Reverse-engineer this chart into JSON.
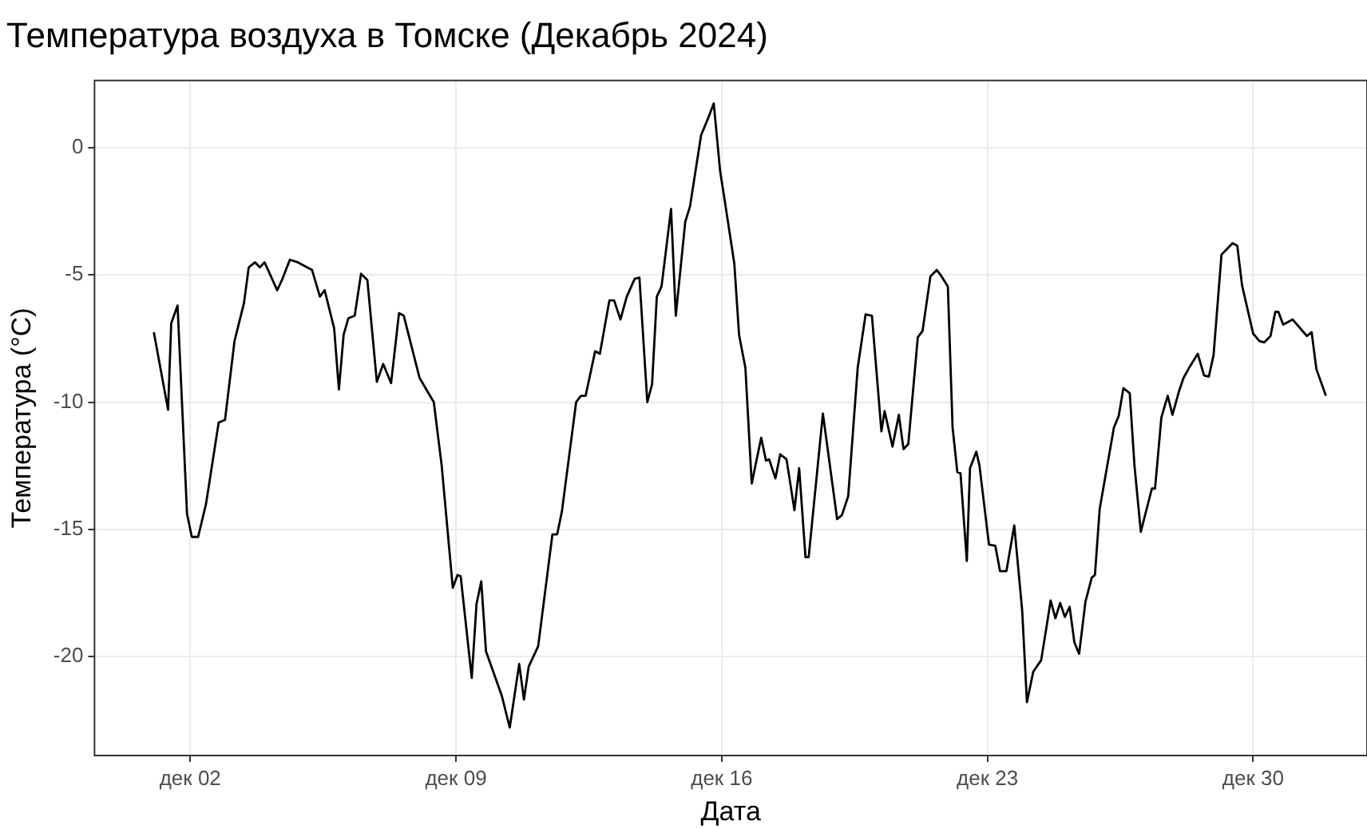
{
  "chart_data": {
    "type": "line",
    "title": "Температура воздуха в Томске (Декабрь 2024)",
    "xlabel": "Дата",
    "ylabel": "Температура (°C)",
    "x": [
      "2024-12-01T01:00",
      "2024-12-01T10:00",
      "2024-12-01T12:00",
      "2024-12-01T16:00",
      "2024-12-01T22:00",
      "2024-12-02T01:00",
      "2024-12-02T05:00",
      "2024-12-02T10:00",
      "2024-12-02T18:00",
      "2024-12-02T22:00",
      "2024-12-03T04:00",
      "2024-12-03T10:00",
      "2024-12-03T13:00",
      "2024-12-03T17:00",
      "2024-12-03T20:00",
      "2024-12-03T23:00",
      "2024-12-04T07:00",
      "2024-12-04T10:00",
      "2024-12-04T15:00",
      "2024-12-04T20:00",
      "2024-12-05T05:00",
      "2024-12-05T10:00",
      "2024-12-05T13:00",
      "2024-12-05T19:00",
      "2024-12-05T22:00",
      "2024-12-06T01:00",
      "2024-12-06T04:00",
      "2024-12-06T08:00",
      "2024-12-06T12:00",
      "2024-12-06T16:00",
      "2024-12-06T22:00",
      "2024-12-07T02:00",
      "2024-12-07T07:00",
      "2024-12-07T12:00",
      "2024-12-07T15:00",
      "2024-12-08T01:00",
      "2024-12-08T10:00",
      "2024-12-08T15:00",
      "2024-12-08T22:00",
      "2024-12-09T01:00",
      "2024-12-09T03:00",
      "2024-12-09T10:00",
      "2024-12-09T13:00",
      "2024-12-09T16:00",
      "2024-12-09T19:00",
      "2024-12-10T05:00",
      "2024-12-10T10:00",
      "2024-12-10T16:00",
      "2024-12-10T19:00",
      "2024-12-10T22:00",
      "2024-12-11T04:00",
      "2024-12-11T13:00",
      "2024-12-11T16:00",
      "2024-12-11T19:00",
      "2024-12-12T04:00",
      "2024-12-12T07:00",
      "2024-12-12T10:00",
      "2024-12-12T16:00",
      "2024-12-12T19:00",
      "2024-12-13T01:00",
      "2024-12-13T04:00",
      "2024-12-13T08:00",
      "2024-12-13T12:00",
      "2024-12-13T17:00",
      "2024-12-13T20:00",
      "2024-12-14T01:00",
      "2024-12-14T04:00",
      "2024-12-14T07:00",
      "2024-12-14T10:00",
      "2024-12-14T16:00",
      "2024-12-14T19:00",
      "2024-12-15T01:00",
      "2024-12-15T04:00",
      "2024-12-15T11:00",
      "2024-12-15T15:00",
      "2024-12-15T19:00",
      "2024-12-15T23:00",
      "2024-12-16T02:00",
      "2024-12-16T08:00",
      "2024-12-16T11:00",
      "2024-12-16T15:00",
      "2024-12-16T19:00",
      "2024-12-17T01:00",
      "2024-12-17T04:00",
      "2024-12-17T06:00",
      "2024-12-17T10:00",
      "2024-12-17T13:00",
      "2024-12-17T17:00",
      "2024-12-17T22:00",
      "2024-12-18T01:00",
      "2024-12-18T05:00",
      "2024-12-18T07:00",
      "2024-12-18T16:00",
      "2024-12-19T01:00",
      "2024-12-19T04:00",
      "2024-12-19T08:00",
      "2024-12-19T14:00",
      "2024-12-19T19:00",
      "2024-12-19T23:00",
      "2024-12-20T05:00",
      "2024-12-20T07:00",
      "2024-12-20T12:00",
      "2024-12-20T16:00",
      "2024-12-20T19:00",
      "2024-12-20T22:00",
      "2024-12-21T04:00",
      "2024-12-21T07:00",
      "2024-12-21T12:00",
      "2024-12-21T16:00",
      "2024-12-21T19:00",
      "2024-12-21T23:00",
      "2024-12-22T02:00",
      "2024-12-22T05:00",
      "2024-12-22T07:00",
      "2024-12-22T11:00",
      "2024-12-22T13:00",
      "2024-12-22T17:00",
      "2024-12-22T19:00",
      "2024-12-23T01:00",
      "2024-12-23T05:00",
      "2024-12-23T08:00",
      "2024-12-23T12:00",
      "2024-12-23T17:00",
      "2024-12-23T22:00",
      "2024-12-24T01:00",
      "2024-12-24T05:00",
      "2024-12-24T10:00",
      "2024-12-24T14:00",
      "2024-12-24T16:00",
      "2024-12-24T19:00",
      "2024-12-24T22:00",
      "2024-12-25T01:00",
      "2024-12-25T04:00",
      "2024-12-25T07:00",
      "2024-12-25T10:00",
      "2024-12-25T14:00",
      "2024-12-25T18:00",
      "2024-12-25T20:00",
      "2024-12-25T23:00",
      "2024-12-26T08:00",
      "2024-12-26T11:00",
      "2024-12-26T14:00",
      "2024-12-26T18:00",
      "2024-12-26T21:00",
      "2024-12-27T01:00",
      "2024-12-27T08:00",
      "2024-12-27T10:00",
      "2024-12-27T14:00",
      "2024-12-27T18:00",
      "2024-12-27T21:00",
      "2024-12-28T01:00",
      "2024-12-28T04:00",
      "2024-12-28T08:00",
      "2024-12-28T13:00",
      "2024-12-28T17:00",
      "2024-12-28T20:00",
      "2024-12-28T23:00",
      "2024-12-29T04:00",
      "2024-12-29T11:00",
      "2024-12-29T14:00",
      "2024-12-29T17:00",
      "2024-12-30T00:00",
      "2024-12-30T04:00",
      "2024-12-30T07:00",
      "2024-12-30T11:00",
      "2024-12-30T14:00",
      "2024-12-30T16:00",
      "2024-12-30T19:00",
      "2024-12-31T01:00",
      "2024-12-31T10:00",
      "2024-12-31T13:00",
      "2024-12-31T16:00",
      "2024-12-31T22:00"
    ],
    "series": [
      {
        "color": "#000000",
        "values": [
          -7.25,
          -10.3,
          -6.9,
          -6.2,
          -14.4,
          -15.3,
          -15.3,
          -14.0,
          -10.8,
          -10.7,
          -7.6,
          -6.1,
          -4.7,
          -4.5,
          -4.7,
          -4.5,
          -5.6,
          -5.2,
          -4.4,
          -4.5,
          -4.8,
          -5.85,
          -5.6,
          -7.1,
          -9.5,
          -7.35,
          -6.7,
          -6.6,
          -4.95,
          -5.2,
          -9.2,
          -8.5,
          -9.25,
          -6.5,
          -6.6,
          -9.05,
          -10.0,
          -12.5,
          -17.3,
          -16.8,
          -16.85,
          -20.85,
          -17.95,
          -17.05,
          -19.8,
          -21.55,
          -22.8,
          -20.3,
          -21.7,
          -20.4,
          -19.6,
          -15.2,
          -15.2,
          -14.3,
          -10.0,
          -9.75,
          -9.75,
          -8.0,
          -8.1,
          -6.0,
          -6.0,
          -6.75,
          -5.85,
          -5.15,
          -5.1,
          -10.0,
          -9.3,
          -5.85,
          -5.45,
          -2.4,
          -6.6,
          -2.9,
          -2.3,
          0.5,
          1.1,
          1.75,
          -0.9,
          -2.1,
          -4.55,
          -7.35,
          -8.65,
          -13.2,
          -11.4,
          -12.3,
          -12.25,
          -13.0,
          -12.05,
          -12.25,
          -14.25,
          -12.6,
          -16.1,
          -16.1,
          -10.45,
          -14.6,
          -14.45,
          -13.7,
          -8.65,
          -6.55,
          -6.6,
          -11.15,
          -10.35,
          -11.75,
          -10.5,
          -11.85,
          -11.65,
          -7.45,
          -7.2,
          -5.05,
          -4.8,
          -5.05,
          -5.45,
          -11.0,
          -12.75,
          -12.8,
          -16.25,
          -12.6,
          -11.95,
          -12.5,
          -15.6,
          -15.65,
          -16.65,
          -16.65,
          -14.85,
          -18.2,
          -21.8,
          -20.6,
          -20.15,
          -18.6,
          -17.8,
          -18.5,
          -17.9,
          -18.45,
          -18.05,
          -19.45,
          -19.9,
          -17.85,
          -16.9,
          -16.8,
          -14.2,
          -11.0,
          -10.55,
          -9.45,
          -9.65,
          -12.5,
          -15.1,
          -13.4,
          -13.4,
          -10.6,
          -9.75,
          -10.5,
          -9.6,
          -9.05,
          -8.6,
          -8.1,
          -8.95,
          -9.0,
          -8.15,
          -4.2,
          -3.75,
          -3.85,
          -5.4,
          -7.3,
          -7.6,
          -7.65,
          -7.4,
          -6.45,
          -6.45,
          -6.95,
          -6.75,
          -7.4,
          -7.25,
          -8.7,
          -9.75
        ]
      }
    ],
    "xlim": [
      "2024-11-29T11:30",
      "2025-01-02T00:00"
    ],
    "xticks": [
      {
        "value": "2024-12-02",
        "label": "дек 02"
      },
      {
        "value": "2024-12-09",
        "label": "дек 09"
      },
      {
        "value": "2024-12-16",
        "label": "дек 16"
      },
      {
        "value": "2024-12-23",
        "label": "дек 23"
      },
      {
        "value": "2024-12-30",
        "label": "дек 30"
      }
    ],
    "ylim": [
      -23.9,
      2.65
    ],
    "yticks": [
      -20,
      -15,
      -10,
      -5,
      0
    ],
    "grid": true,
    "legend": false,
    "marker": "none",
    "line_style": "solid"
  }
}
